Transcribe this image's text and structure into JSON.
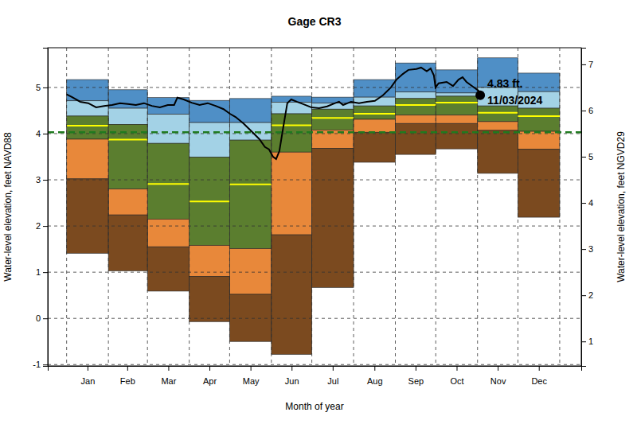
{
  "chart_data": {
    "type": "line",
    "title": "Gage CR3",
    "x_label": "Month of year",
    "y_label": "Water-level elevation, feet NAVD88",
    "y2_label": "Water-level elevation, feet NGVD29",
    "xlim": [
      -14,
      382
    ],
    "xticks": [
      {
        "value": 15.5,
        "label": "Jan"
      },
      {
        "value": 45,
        "label": "Feb"
      },
      {
        "value": 75.5,
        "label": "Mar"
      },
      {
        "value": 106,
        "label": "Apr"
      },
      {
        "value": 136.5,
        "label": "May"
      },
      {
        "value": 167,
        "label": "Jun"
      },
      {
        "value": 197.5,
        "label": "Jul"
      },
      {
        "value": 228.5,
        "label": "Aug"
      },
      {
        "value": 259,
        "label": "Sep"
      },
      {
        "value": 289.5,
        "label": "Oct"
      },
      {
        "value": 320,
        "label": "Nov"
      },
      {
        "value": 350.5,
        "label": "Dec"
      }
    ],
    "month_edges": [
      0,
      31,
      60,
      91,
      121,
      152,
      182,
      213,
      244,
      274,
      305,
      335,
      366
    ],
    "ylim": [
      -1.03,
      5.86
    ],
    "yticks": [
      -1,
      0,
      1,
      2,
      3,
      4,
      5
    ],
    "y2lim": [
      0.47,
      7.36
    ],
    "y2ticks": [
      1,
      2,
      3,
      4,
      5,
      6,
      7
    ],
    "grid": true,
    "reference_line": {
      "y": 4.03,
      "color": "#1f7a1f",
      "line_style": "dashed"
    },
    "annotation": {
      "x": 307,
      "y": 4.83,
      "labels": [
        "4.83 ft.",
        "11/03/2024"
      ]
    },
    "series": [
      {
        "type": "band",
        "color": "#4f8fc6",
        "low": [
          4.71,
          4.55,
          4.42,
          4.24,
          4.24,
          4.68,
          4.66,
          4.79,
          4.9,
          4.88,
          5.0,
          4.91
        ],
        "high": [
          5.17,
          4.95,
          4.78,
          4.72,
          4.76,
          4.81,
          4.79,
          5.17,
          5.53,
          5.38,
          5.64,
          5.31
        ]
      },
      {
        "type": "band",
        "color": "#a3d2e6",
        "low": [
          4.38,
          4.2,
          3.79,
          3.49,
          3.86,
          4.43,
          4.53,
          4.6,
          4.76,
          4.81,
          4.6,
          4.55
        ],
        "high": [
          4.71,
          4.55,
          4.42,
          4.24,
          4.24,
          4.68,
          4.66,
          4.79,
          4.9,
          4.88,
          5.0,
          4.91
        ]
      },
      {
        "type": "band",
        "color": "#5b7e2f",
        "low": [
          3.88,
          2.8,
          2.15,
          1.58,
          1.51,
          3.6,
          4.08,
          4.31,
          4.4,
          4.4,
          4.26,
          4.05
        ],
        "high": [
          4.38,
          4.2,
          3.79,
          3.49,
          3.86,
          4.43,
          4.53,
          4.6,
          4.76,
          4.81,
          4.6,
          4.55
        ]
      },
      {
        "type": "band",
        "color": "#e8883a",
        "low": [
          3.02,
          2.24,
          1.55,
          0.91,
          0.52,
          1.81,
          3.68,
          4.03,
          4.22,
          4.22,
          4.07,
          3.66
        ],
        "high": [
          3.88,
          2.8,
          2.15,
          1.58,
          1.51,
          3.6,
          4.08,
          4.31,
          4.4,
          4.4,
          4.26,
          4.05
        ]
      },
      {
        "type": "band",
        "color": "#7b4a1f",
        "low": [
          1.41,
          1.03,
          0.59,
          -0.07,
          -0.5,
          -0.78,
          0.67,
          3.38,
          3.55,
          3.67,
          3.14,
          2.19
        ],
        "high": [
          3.02,
          2.24,
          1.55,
          0.91,
          0.52,
          1.81,
          3.68,
          4.03,
          4.22,
          4.22,
          4.07,
          3.66
        ]
      },
      {
        "type": "step",
        "color": "#ffff00",
        "values": [
          4.17,
          3.87,
          2.91,
          2.53,
          2.9,
          4.18,
          4.34,
          4.43,
          4.62,
          4.67,
          4.45,
          4.38
        ]
      },
      {
        "type": "line",
        "color": "#000000",
        "x": [
          0,
          4.1,
          10.1,
          16,
          21.9,
          27.8,
          33.7,
          39.6,
          45.5,
          51.4,
          57.4,
          63.3,
          69.2,
          75.1,
          79.8,
          82.2,
          86.9,
          92.8,
          98.7,
          104.7,
          110.6,
          116.5,
          121.2,
          125.4,
          131.3,
          137.2,
          143.1,
          147.2,
          150.2,
          153.2,
          155.5,
          157.9,
          160.8,
          163.8,
          166.7,
          170.9,
          175.6,
          181.5,
          187.4,
          193.4,
          199.3,
          202.2,
          205.2,
          211.1,
          217,
          222.9,
          228.8,
          234.8,
          240.7,
          244.8,
          249.5,
          253.7,
          259.6,
          263.1,
          267.3,
          270.2,
          272.6,
          273.8,
          276.1,
          282.1,
          286.8,
          290.9,
          293.9,
          296.8,
          301,
          305.7,
          307
        ],
        "values": [
          4.85,
          4.79,
          4.69,
          4.66,
          4.57,
          4.6,
          4.62,
          4.66,
          4.64,
          4.62,
          4.66,
          4.6,
          4.57,
          4.62,
          4.62,
          4.78,
          4.74,
          4.67,
          4.62,
          4.66,
          4.6,
          4.53,
          4.43,
          4.36,
          4.22,
          4.05,
          3.88,
          3.71,
          3.66,
          3.5,
          3.45,
          3.62,
          4.14,
          4.66,
          4.74,
          4.69,
          4.64,
          4.57,
          4.55,
          4.59,
          4.66,
          4.69,
          4.62,
          4.69,
          4.66,
          4.69,
          4.71,
          4.83,
          5.0,
          5.17,
          5.29,
          5.38,
          5.4,
          5.43,
          5.35,
          5.41,
          5.26,
          5.0,
          5.09,
          5.12,
          5.03,
          5.17,
          5.22,
          5.12,
          5.03,
          4.93,
          4.83
        ]
      }
    ]
  }
}
